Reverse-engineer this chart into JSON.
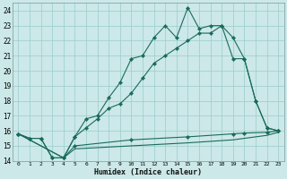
{
  "xlabel": "Humidex (Indice chaleur)",
  "bg_color": "#cce8e8",
  "grid_color": "#99cccc",
  "line_color": "#1a6b5a",
  "xlim": [
    -0.5,
    23.5
  ],
  "ylim": [
    14,
    24.5
  ],
  "xticks": [
    0,
    1,
    2,
    3,
    4,
    5,
    6,
    7,
    8,
    9,
    10,
    11,
    12,
    13,
    14,
    15,
    16,
    17,
    18,
    19,
    20,
    21,
    22,
    23
  ],
  "yticks": [
    14,
    15,
    16,
    17,
    18,
    19,
    20,
    21,
    22,
    23,
    24
  ],
  "line1_x": [
    0,
    1,
    2,
    3,
    4,
    5,
    6,
    7,
    8,
    9,
    10,
    11,
    12,
    13,
    14,
    15,
    16,
    17,
    18,
    19,
    20,
    21,
    22,
    23
  ],
  "line1_y": [
    15.8,
    15.5,
    15.5,
    14.2,
    14.2,
    15.6,
    16.8,
    17.0,
    18.2,
    19.2,
    20.8,
    21.0,
    22.2,
    23.0,
    22.2,
    24.2,
    22.8,
    23.0,
    23.0,
    22.2,
    20.8,
    18.0,
    16.2,
    16.0
  ],
  "line2_x": [
    0,
    1,
    2,
    3,
    4,
    5,
    6,
    7,
    8,
    9,
    10,
    11,
    12,
    13,
    14,
    15,
    16,
    17,
    18,
    19,
    20,
    21,
    22,
    23
  ],
  "line2_y": [
    15.8,
    15.5,
    15.5,
    14.2,
    14.2,
    15.6,
    16.2,
    16.8,
    17.5,
    17.8,
    18.5,
    19.5,
    20.5,
    21.0,
    21.5,
    22.0,
    22.5,
    22.5,
    23.0,
    20.8,
    20.8,
    18.0,
    16.2,
    16.0
  ],
  "line3_x": [
    0,
    4,
    5,
    10,
    15,
    19,
    20,
    22,
    23
  ],
  "line3_y": [
    15.8,
    14.2,
    15.0,
    15.4,
    15.6,
    15.8,
    15.85,
    15.9,
    16.0
  ],
  "line4_x": [
    0,
    4,
    5,
    10,
    15,
    19,
    20,
    22,
    23
  ],
  "line4_y": [
    15.8,
    14.2,
    14.8,
    15.0,
    15.2,
    15.4,
    15.5,
    15.7,
    15.9
  ]
}
